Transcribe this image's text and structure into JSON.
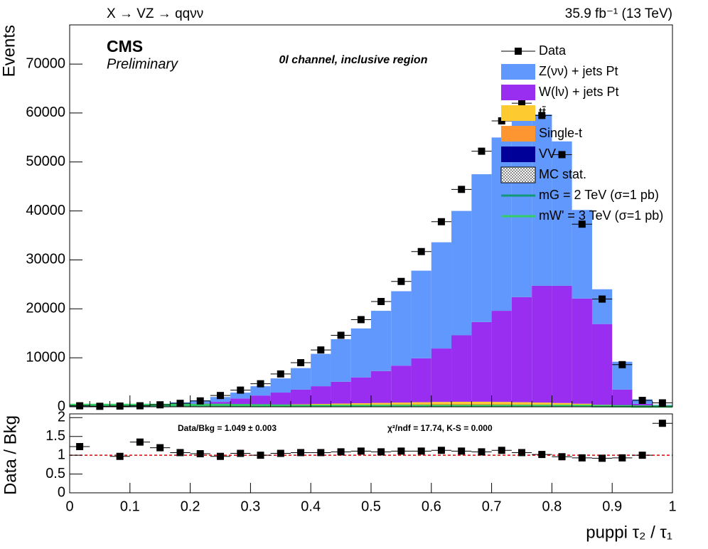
{
  "chart_data": [
    {
      "type": "stacked_histogram",
      "title": "X → VZ → qqνν",
      "lumi_label": "35.9 fb⁻¹ (13 TeV)",
      "experiment": "CMS",
      "status": "Preliminary",
      "region": "0l channel, inclusive region",
      "ylabel": "Events",
      "bins": [
        0,
        0.0333,
        0.0667,
        0.1,
        0.1333,
        0.1667,
        0.2,
        0.2333,
        0.2667,
        0.3,
        0.3333,
        0.3667,
        0.4,
        0.4333,
        0.4667,
        0.5,
        0.5333,
        0.5667,
        0.6,
        0.6333,
        0.6667,
        0.7,
        0.7333,
        0.7667,
        0.8,
        0.8333,
        0.8667,
        0.9,
        0.9333,
        0.9667,
        1
      ],
      "xlim": [
        0,
        1
      ],
      "ylim": [
        0,
        78000
      ],
      "yticks": [
        0,
        10000,
        20000,
        30000,
        40000,
        50000,
        60000,
        70000
      ],
      "data": {
        "name": "Data",
        "color": "#000000",
        "values": [
          200,
          100,
          150,
          200,
          400,
          700,
          1200,
          2300,
          3400,
          4700,
          6700,
          9000,
          11600,
          14600,
          17800,
          21500,
          25600,
          31700,
          37800,
          44400,
          52200,
          58400,
          62000,
          59500,
          51500,
          37300,
          22000,
          8600,
          1300,
          800
        ]
      },
      "series": [
        {
          "name": "Z(νν) + jets Pt",
          "color": "#6198fd",
          "values": [
            150,
            150,
            200,
            250,
            300,
            400,
            600,
            1000,
            1200,
            1900,
            2900,
            4400,
            6600,
            8700,
            10000,
            12300,
            15200,
            17900,
            21700,
            25400,
            30200,
            35400,
            36600,
            35000,
            29500,
            18100,
            7100,
            5700,
            900,
            200
          ]
        },
        {
          "name": "W(lν) + jets Pt",
          "color": "#9a2ef0",
          "values": [
            110,
            60,
            60,
            80,
            200,
            370,
            520,
            760,
            1400,
            1930,
            2460,
            2990,
            3620,
            4450,
            5280,
            6510,
            7540,
            8970,
            10910,
            13580,
            16270,
            18610,
            21470,
            23840,
            23930,
            21480,
            16490,
            3300,
            530,
            170
          ]
        },
        {
          "name": "tt̄",
          "color": "#fdcb30",
          "values": [
            10,
            10,
            10,
            20,
            30,
            40,
            60,
            80,
            100,
            130,
            160,
            190,
            220,
            250,
            280,
            310,
            340,
            370,
            400,
            420,
            430,
            420,
            400,
            370,
            330,
            260,
            170,
            80,
            30,
            10
          ]
        },
        {
          "name": "Single-t",
          "color": "#fd9530",
          "values": [
            10,
            10,
            10,
            20,
            30,
            40,
            60,
            80,
            100,
            120,
            140,
            160,
            180,
            200,
            220,
            240,
            260,
            280,
            290,
            300,
            300,
            290,
            270,
            250,
            220,
            180,
            120,
            60,
            20,
            10
          ]
        },
        {
          "name": "VV",
          "color": "#000099",
          "values": [
            20,
            20,
            20,
            30,
            40,
            50,
            60,
            80,
            100,
            120,
            140,
            160,
            180,
            200,
            220,
            240,
            260,
            280,
            300,
            300,
            300,
            280,
            260,
            240,
            220,
            180,
            120,
            60,
            20,
            10
          ]
        }
      ],
      "mc_stat_label": "MC stat.",
      "signals": [
        {
          "name": "mG = 2 TeV (σ=1 pb)",
          "color": "#119977",
          "values": [
            300,
            300,
            300,
            300,
            300,
            300,
            300,
            300,
            300,
            250,
            200,
            150,
            150,
            150,
            150,
            150,
            150,
            150,
            150,
            150,
            150,
            150,
            150,
            150,
            150,
            150,
            100,
            100,
            50,
            50
          ]
        },
        {
          "name": "mW' = 3 TeV (σ=1 pb)",
          "color": "#33cc66",
          "values": [
            400,
            400,
            400,
            400,
            400,
            400,
            400,
            400,
            350,
            300,
            250,
            200,
            200,
            200,
            200,
            200,
            200,
            200,
            200,
            200,
            200,
            200,
            200,
            200,
            200,
            200,
            150,
            100,
            50,
            50
          ]
        }
      ]
    },
    {
      "type": "ratio",
      "ylabel": "Data / Bkg",
      "xlabel": "puppi τ₂ / τ₁",
      "summary": "Data/Bkg = 1.049 ± 0.003",
      "fit": "χ²/ndf = 17.74,   K-S = 0.000",
      "xlim": [
        0,
        1
      ],
      "xticks": [
        0,
        0.1,
        0.2,
        0.3,
        0.4,
        0.5,
        0.6,
        0.7,
        0.8,
        0.9,
        1
      ],
      "ylim": [
        0,
        2.1
      ],
      "yticks": [
        0,
        0.5,
        1,
        1.5,
        2
      ],
      "reference": 1,
      "reference_color": "#dd0000",
      "values": [
        1.23,
        null,
        0.97,
        1.35,
        1.2,
        1.07,
        1.04,
        0.97,
        1.05,
        1.0,
        1.05,
        1.07,
        1.07,
        1.09,
        1.11,
        1.09,
        1.11,
        1.11,
        1.13,
        1.11,
        1.09,
        1.13,
        1.07,
        1.02,
        0.96,
        0.93,
        0.92,
        0.93,
        1.0,
        1.85
      ]
    }
  ]
}
